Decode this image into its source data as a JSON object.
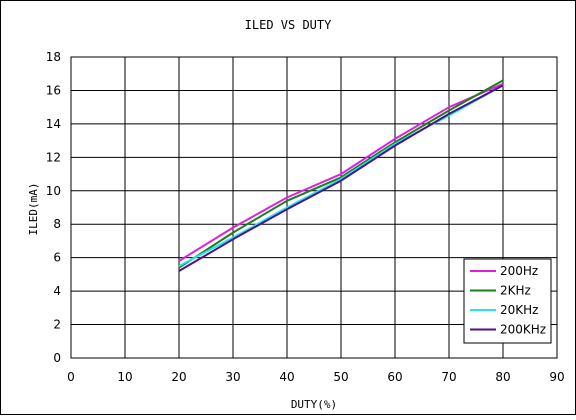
{
  "chart_data": {
    "type": "line",
    "title": "ILED VS DUTY",
    "xlabel": "DUTY(%)",
    "ylabel": "ILED(mA)",
    "xlim": [
      0,
      90
    ],
    "ylim": [
      0,
      18
    ],
    "xticks": [
      0,
      10,
      20,
      30,
      40,
      50,
      60,
      70,
      80,
      90
    ],
    "yticks": [
      0,
      2,
      4,
      6,
      8,
      10,
      12,
      14,
      16,
      18
    ],
    "grid": true,
    "legend_position": "bottom-right",
    "series": [
      {
        "name": "200Hz",
        "color": "#e020e0",
        "x": [
          20,
          30,
          40,
          50,
          60,
          70,
          80
        ],
        "y": [
          5.8,
          7.8,
          9.6,
          11.0,
          13.1,
          15.0,
          16.4
        ]
      },
      {
        "name": "2KHz",
        "color": "#1a7f1a",
        "x": [
          20,
          30,
          40,
          50,
          60,
          70,
          80
        ],
        "y": [
          5.4,
          7.5,
          9.4,
          10.8,
          12.9,
          14.8,
          16.6
        ]
      },
      {
        "name": "20KHz",
        "color": "#22e6ea",
        "x": [
          20,
          30,
          40,
          50,
          60,
          70,
          80
        ],
        "y": [
          5.5,
          7.2,
          9.0,
          10.7,
          12.8,
          14.5,
          16.3
        ]
      },
      {
        "name": "200KHz",
        "color": "#50108a",
        "x": [
          20,
          30,
          40,
          50,
          60,
          70,
          80
        ],
        "y": [
          5.2,
          7.1,
          8.9,
          10.6,
          12.7,
          14.6,
          16.3
        ]
      }
    ]
  }
}
